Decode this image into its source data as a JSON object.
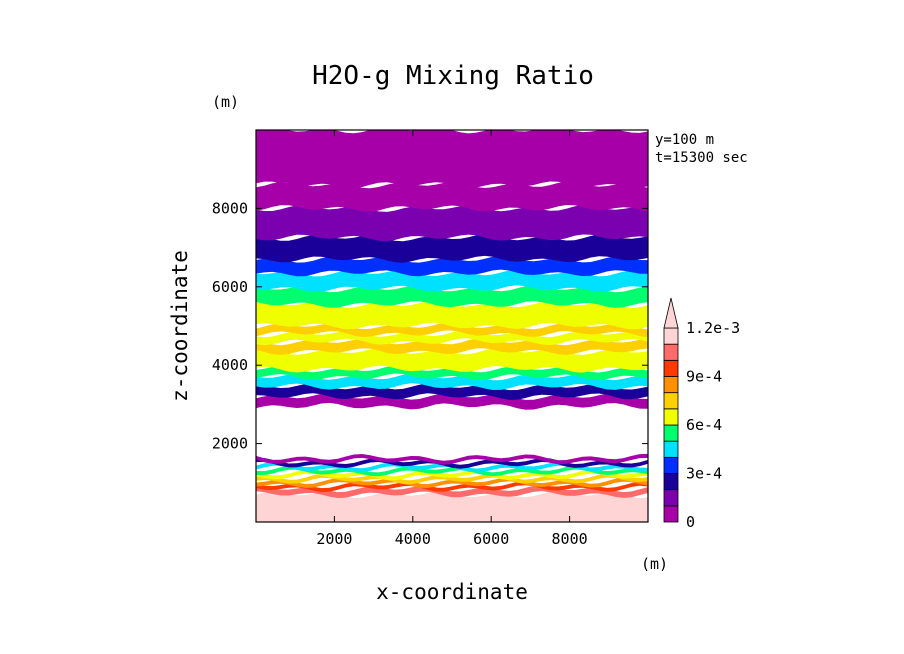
{
  "chart_data": {
    "type": "heatmap",
    "title": "H2O-g Mixing Ratio",
    "xlabel": "x-coordinate",
    "ylabel": "z-coordinate",
    "x_unit": "(m)",
    "y_unit": "(m)",
    "annotations": [
      "y=100 m",
      "t=15300 sec"
    ],
    "xlim": [
      0,
      10000
    ],
    "ylim": [
      0,
      10000
    ],
    "xticks": [
      2000,
      4000,
      6000,
      8000
    ],
    "yticks": [
      2000,
      4000,
      6000,
      8000
    ],
    "colorbar": {
      "levels": [
        0,
        0.0001,
        0.0002,
        0.0003,
        0.0004,
        0.0005,
        0.0006,
        0.0007,
        0.0008,
        0.0009,
        0.001,
        0.0011,
        0.0012
      ],
      "labels": [
        "0",
        "3e-4",
        "6e-4",
        "9e-4",
        "1.2e-3"
      ],
      "label_values": [
        0,
        0.0003,
        0.0006,
        0.0009,
        0.0012
      ],
      "colors": [
        "#a800a8",
        "#7a00b0",
        "#1a0098",
        "#0030ff",
        "#00e0ff",
        "#00ff6e",
        "#f0ff00",
        "#ffd000",
        "#ff9000",
        "#ff3a00",
        "#ff6a6a",
        "#ffd4d4"
      ],
      "extend": "max"
    },
    "bands": [
      {
        "z0": 0,
        "z1": 700,
        "value": 0.00115
      },
      {
        "z0": 700,
        "z1": 850,
        "value": 0.00105
      },
      {
        "z0": 850,
        "z1": 950,
        "value": 0.00095
      },
      {
        "z0": 950,
        "z1": 1050,
        "value": 0.00085
      },
      {
        "z0": 1050,
        "z1": 1150,
        "value": 0.00075
      },
      {
        "z0": 1150,
        "z1": 1250,
        "value": 0.00065
      },
      {
        "z0": 1250,
        "z1": 1350,
        "value": 0.00055
      },
      {
        "z0": 1350,
        "z1": 1450,
        "value": 0.00045
      },
      {
        "z0": 1450,
        "z1": 1550,
        "value": 0.00025
      },
      {
        "z0": 1550,
        "z1": 1650,
        "value": 5e-05
      },
      {
        "z0": 1650,
        "z1": 2950,
        "value": null
      },
      {
        "z0": 2950,
        "z1": 3200,
        "value": 5e-05
      },
      {
        "z0": 3200,
        "z1": 3450,
        "value": 0.00025
      },
      {
        "z0": 3450,
        "z1": 3700,
        "value": 0.00045
      },
      {
        "z0": 3700,
        "z1": 3900,
        "value": 0.00055
      },
      {
        "z0": 3900,
        "z1": 4350,
        "value": 0.00065
      },
      {
        "z0": 4350,
        "z1": 4600,
        "value": 0.00075
      },
      {
        "z0": 4600,
        "z1": 4800,
        "value": 0.00065
      },
      {
        "z0": 4800,
        "z1": 5000,
        "value": 0.00075
      },
      {
        "z0": 5000,
        "z1": 5550,
        "value": 0.00065
      },
      {
        "z0": 5550,
        "z1": 5950,
        "value": 0.00055
      },
      {
        "z0": 5950,
        "z1": 6350,
        "value": 0.00045
      },
      {
        "z0": 6350,
        "z1": 6700,
        "value": 0.00035
      },
      {
        "z0": 6700,
        "z1": 7250,
        "value": 0.00025
      },
      {
        "z0": 7250,
        "z1": 8000,
        "value": 0.00015
      },
      {
        "z0": 8000,
        "z1": 8600,
        "value": 5e-05
      },
      {
        "z0": 8600,
        "z1": 10000,
        "value": 3e-05
      }
    ]
  }
}
